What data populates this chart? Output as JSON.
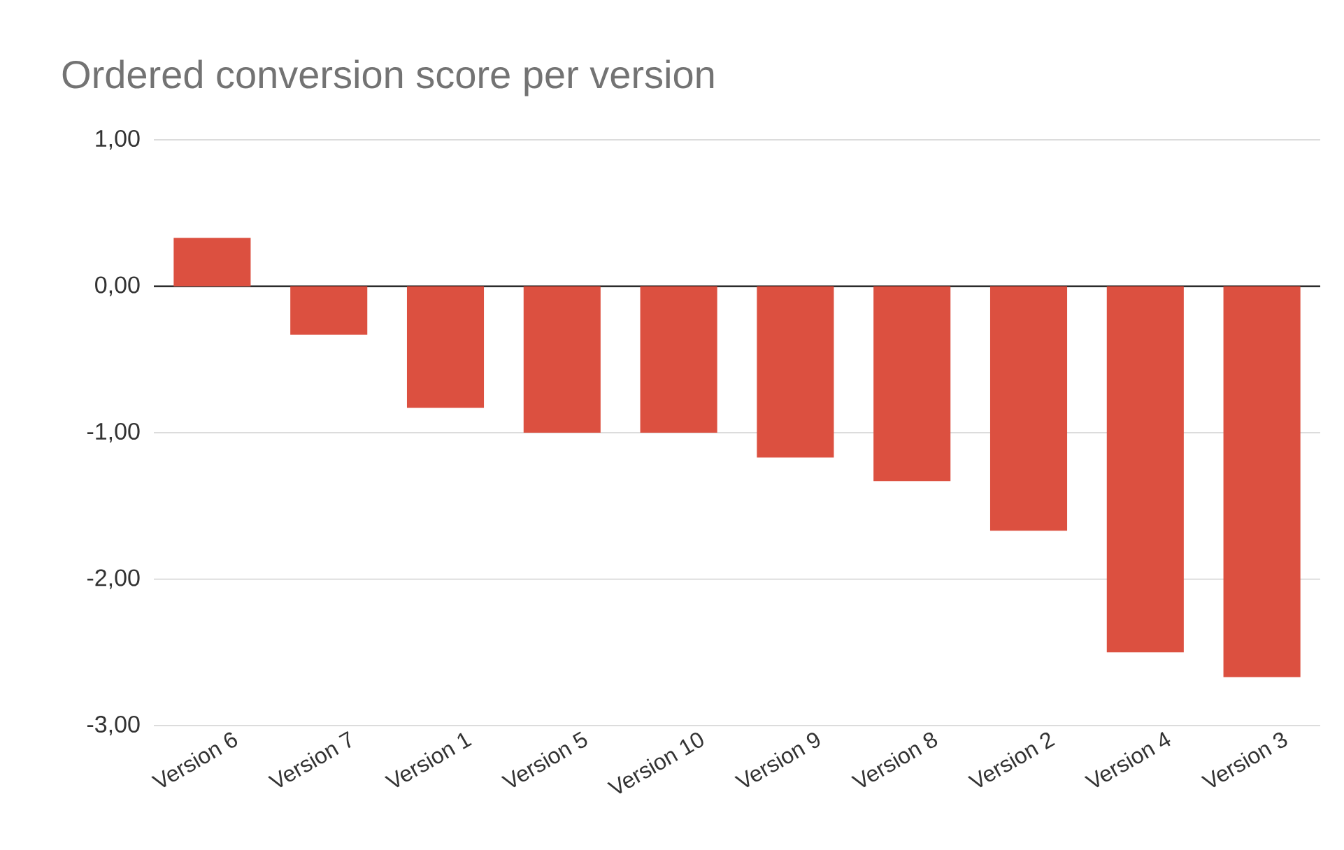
{
  "chart_data": {
    "type": "bar",
    "title": "Ordered conversion score per version",
    "categories": [
      "Version 6",
      "Version 7",
      "Version 1",
      "Version 5",
      "Version 10",
      "Version 9",
      "Version 8",
      "Version 2",
      "Version 4",
      "Version 3"
    ],
    "values": [
      0.33,
      -0.33,
      -0.83,
      -1.0,
      -1.0,
      -1.17,
      -1.33,
      -1.67,
      -2.5,
      -2.67
    ],
    "color": "#dc5040",
    "ylim": [
      -3,
      1
    ],
    "yticks": [
      {
        "value": 1,
        "label": "1,00"
      },
      {
        "value": 0,
        "label": "0,00"
      },
      {
        "value": -1,
        "label": "-1,00"
      },
      {
        "value": -2,
        "label": "-2,00"
      },
      {
        "value": -3,
        "label": "-3,00"
      }
    ],
    "grid": "y"
  }
}
